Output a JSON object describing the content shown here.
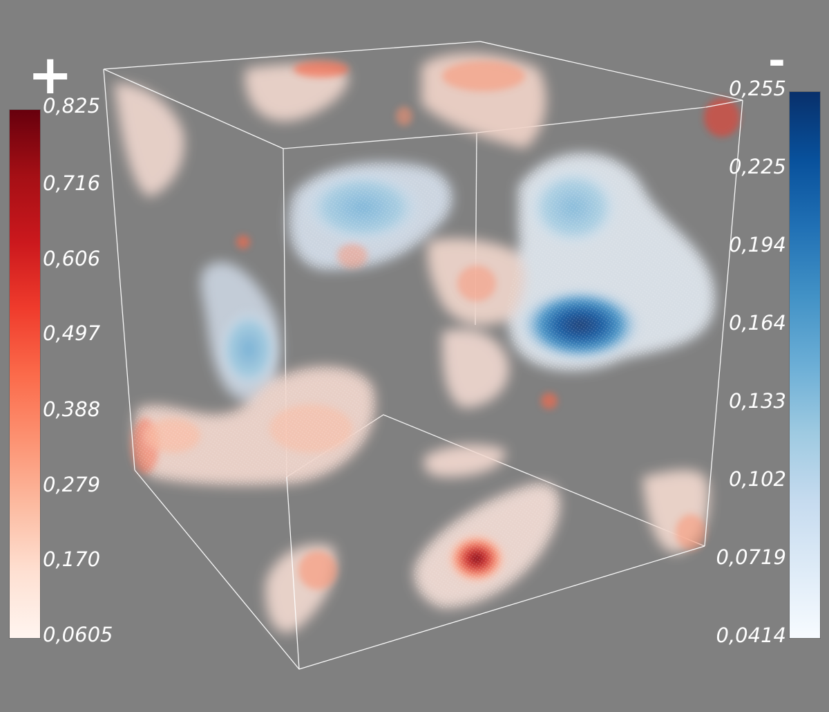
{
  "scene": {
    "background": "#808080",
    "box_color": "#ffffff",
    "positive_colormap": "Reds",
    "negative_colormap": "Blues"
  },
  "positive_bar": {
    "sign": "+",
    "ticks": [
      "0,825",
      "0,716",
      "0,606",
      "0,497",
      "0,388",
      "0,279",
      "0,170",
      "0,0605"
    ],
    "colors": [
      "#67000d",
      "#a50f15",
      "#cb181d",
      "#ef3b2c",
      "#fb6a4a",
      "#fc9272",
      "#fcbba1",
      "#fee0d2",
      "#fff5f0"
    ]
  },
  "negative_bar": {
    "sign": "-",
    "ticks": [
      "0,255",
      "0,225",
      "0,194",
      "0,164",
      "0,133",
      "0,102",
      "0,0719",
      "0,0414"
    ],
    "colors": [
      "#08306b",
      "#08519c",
      "#2171b5",
      "#4292c6",
      "#6baed6",
      "#9ecae1",
      "#c6dbef",
      "#deebf7",
      "#f7fbff"
    ]
  }
}
